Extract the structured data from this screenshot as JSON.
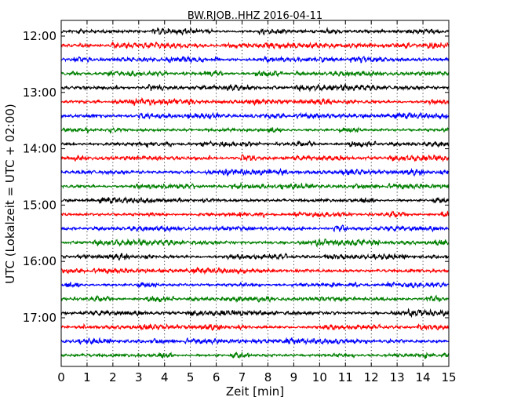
{
  "chart_data": {
    "type": "line",
    "title": "BW.RJOB..HHZ 2016-04-11",
    "xlabel": "Zeit  [min]",
    "ylabel": "UTC (Lokalzeit = UTC + 02:00)",
    "xlim": [
      0,
      15
    ],
    "x_ticks": [
      "0",
      "1",
      "2",
      "3",
      "4",
      "5",
      "6",
      "7",
      "8",
      "9",
      "10",
      "11",
      "12",
      "13",
      "14",
      "15"
    ],
    "y_tick_labels": [
      "12:00",
      "13:00",
      "14:00",
      "15:00",
      "16:00",
      "17:00"
    ],
    "grid": "vertical-dotted",
    "trace_start": "11:55",
    "trace_interval_minutes": 15,
    "trace_count": 24,
    "trace_colors": [
      "#000000",
      "#ff0000",
      "#0000ff",
      "#008000"
    ]
  }
}
